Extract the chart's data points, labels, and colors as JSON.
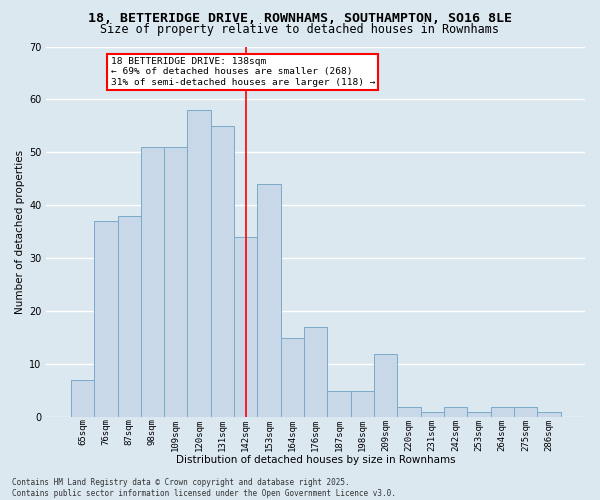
{
  "title": "18, BETTERIDGE DRIVE, ROWNHAMS, SOUTHAMPTON, SO16 8LE",
  "subtitle": "Size of property relative to detached houses in Rownhams",
  "xlabel": "Distribution of detached houses by size in Rownhams",
  "ylabel": "Number of detached properties",
  "categories": [
    "65sqm",
    "76sqm",
    "87sqm",
    "98sqm",
    "109sqm",
    "120sqm",
    "131sqm",
    "142sqm",
    "153sqm",
    "164sqm",
    "176sqm",
    "187sqm",
    "198sqm",
    "209sqm",
    "220sqm",
    "231sqm",
    "242sqm",
    "253sqm",
    "264sqm",
    "275sqm",
    "286sqm"
  ],
  "values": [
    7,
    37,
    38,
    51,
    51,
    58,
    55,
    34,
    44,
    15,
    17,
    5,
    5,
    12,
    2,
    1,
    2,
    1,
    2,
    2,
    1
  ],
  "bar_color": "#c8d8e8",
  "bar_edge_color": "#7aaac8",
  "vline_x": 7,
  "vline_color": "red",
  "ylim": [
    0,
    70
  ],
  "yticks": [
    0,
    10,
    20,
    30,
    40,
    50,
    60,
    70
  ],
  "annotation_title": "18 BETTERIDGE DRIVE: 138sqm",
  "annotation_line1": "← 69% of detached houses are smaller (268)",
  "annotation_line2": "31% of semi-detached houses are larger (118) →",
  "annotation_box_color": "#ffffff",
  "annotation_box_edge": "red",
  "footer1": "Contains HM Land Registry data © Crown copyright and database right 2025.",
  "footer2": "Contains public sector information licensed under the Open Government Licence v3.0.",
  "bg_color": "#dce8f0",
  "grid_color": "#ffffff",
  "title_fontsize": 9.5,
  "subtitle_fontsize": 8.5,
  "tick_fontsize": 6.5,
  "ylabel_fontsize": 7.5,
  "xlabel_fontsize": 7.5,
  "footer_fontsize": 5.5
}
